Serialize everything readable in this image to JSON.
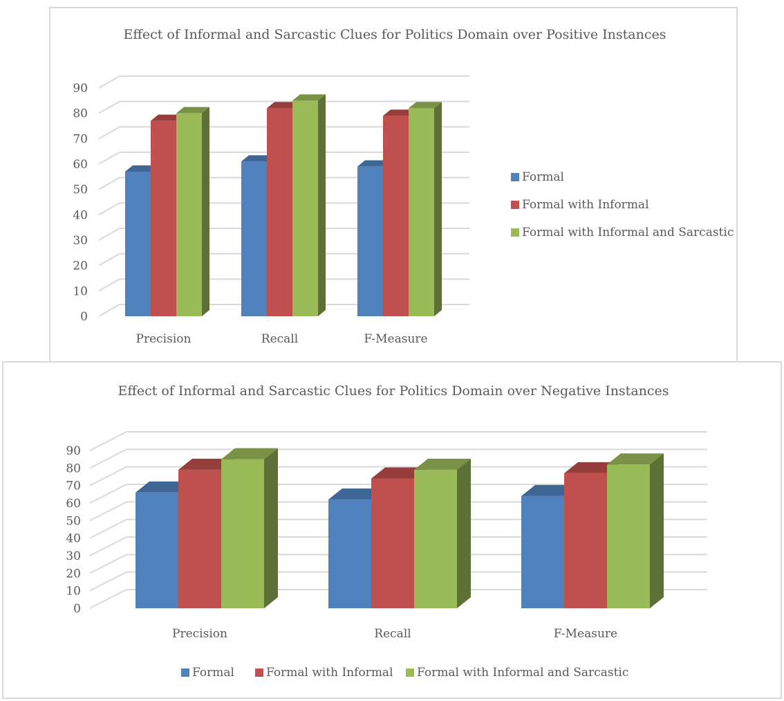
{
  "colors": {
    "formal": "#4f81bd",
    "formal_informal": "#c0504d",
    "formal_informal_sarcastic": "#9bbb59",
    "grid": "#d9d9d9",
    "text": "#595959"
  },
  "chart_data": [
    {
      "type": "bar",
      "title": "Effect of Informal and Sarcastic Clues for Politics Domain over Positive Instances",
      "categories": [
        "Precision",
        "Recall",
        "F-Measure"
      ],
      "series": [
        {
          "name": "Formal",
          "values": [
            57,
            61,
            59
          ]
        },
        {
          "name": "Formal with Informal",
          "values": [
            77,
            82,
            79
          ]
        },
        {
          "name": "Formal with Informal and Sarcastic",
          "values": [
            80,
            85,
            82
          ]
        }
      ],
      "ylim": [
        0,
        90
      ],
      "yticks": [
        "0",
        "10",
        "20",
        "30",
        "40",
        "50",
        "60",
        "70",
        "80",
        "90"
      ],
      "grid": true,
      "legend": "right"
    },
    {
      "type": "bar",
      "title": "Effect of Informal and Sarcastic Clues for Politics Domain over Negative Instances",
      "categories": [
        "Precision",
        "Recall",
        "F-Measure"
      ],
      "series": [
        {
          "name": "Formal",
          "values": [
            66,
            62,
            64
          ]
        },
        {
          "name": "Formal with Informal",
          "values": [
            79,
            74,
            77
          ]
        },
        {
          "name": "Formal with Informal and Sarcastic",
          "values": [
            85,
            79,
            82
          ]
        }
      ],
      "ylim": [
        0,
        90
      ],
      "yticks": [
        "0",
        "10",
        "20",
        "30",
        "40",
        "50",
        "60",
        "70",
        "80",
        "90"
      ],
      "grid": true,
      "legend": "bottom"
    }
  ]
}
